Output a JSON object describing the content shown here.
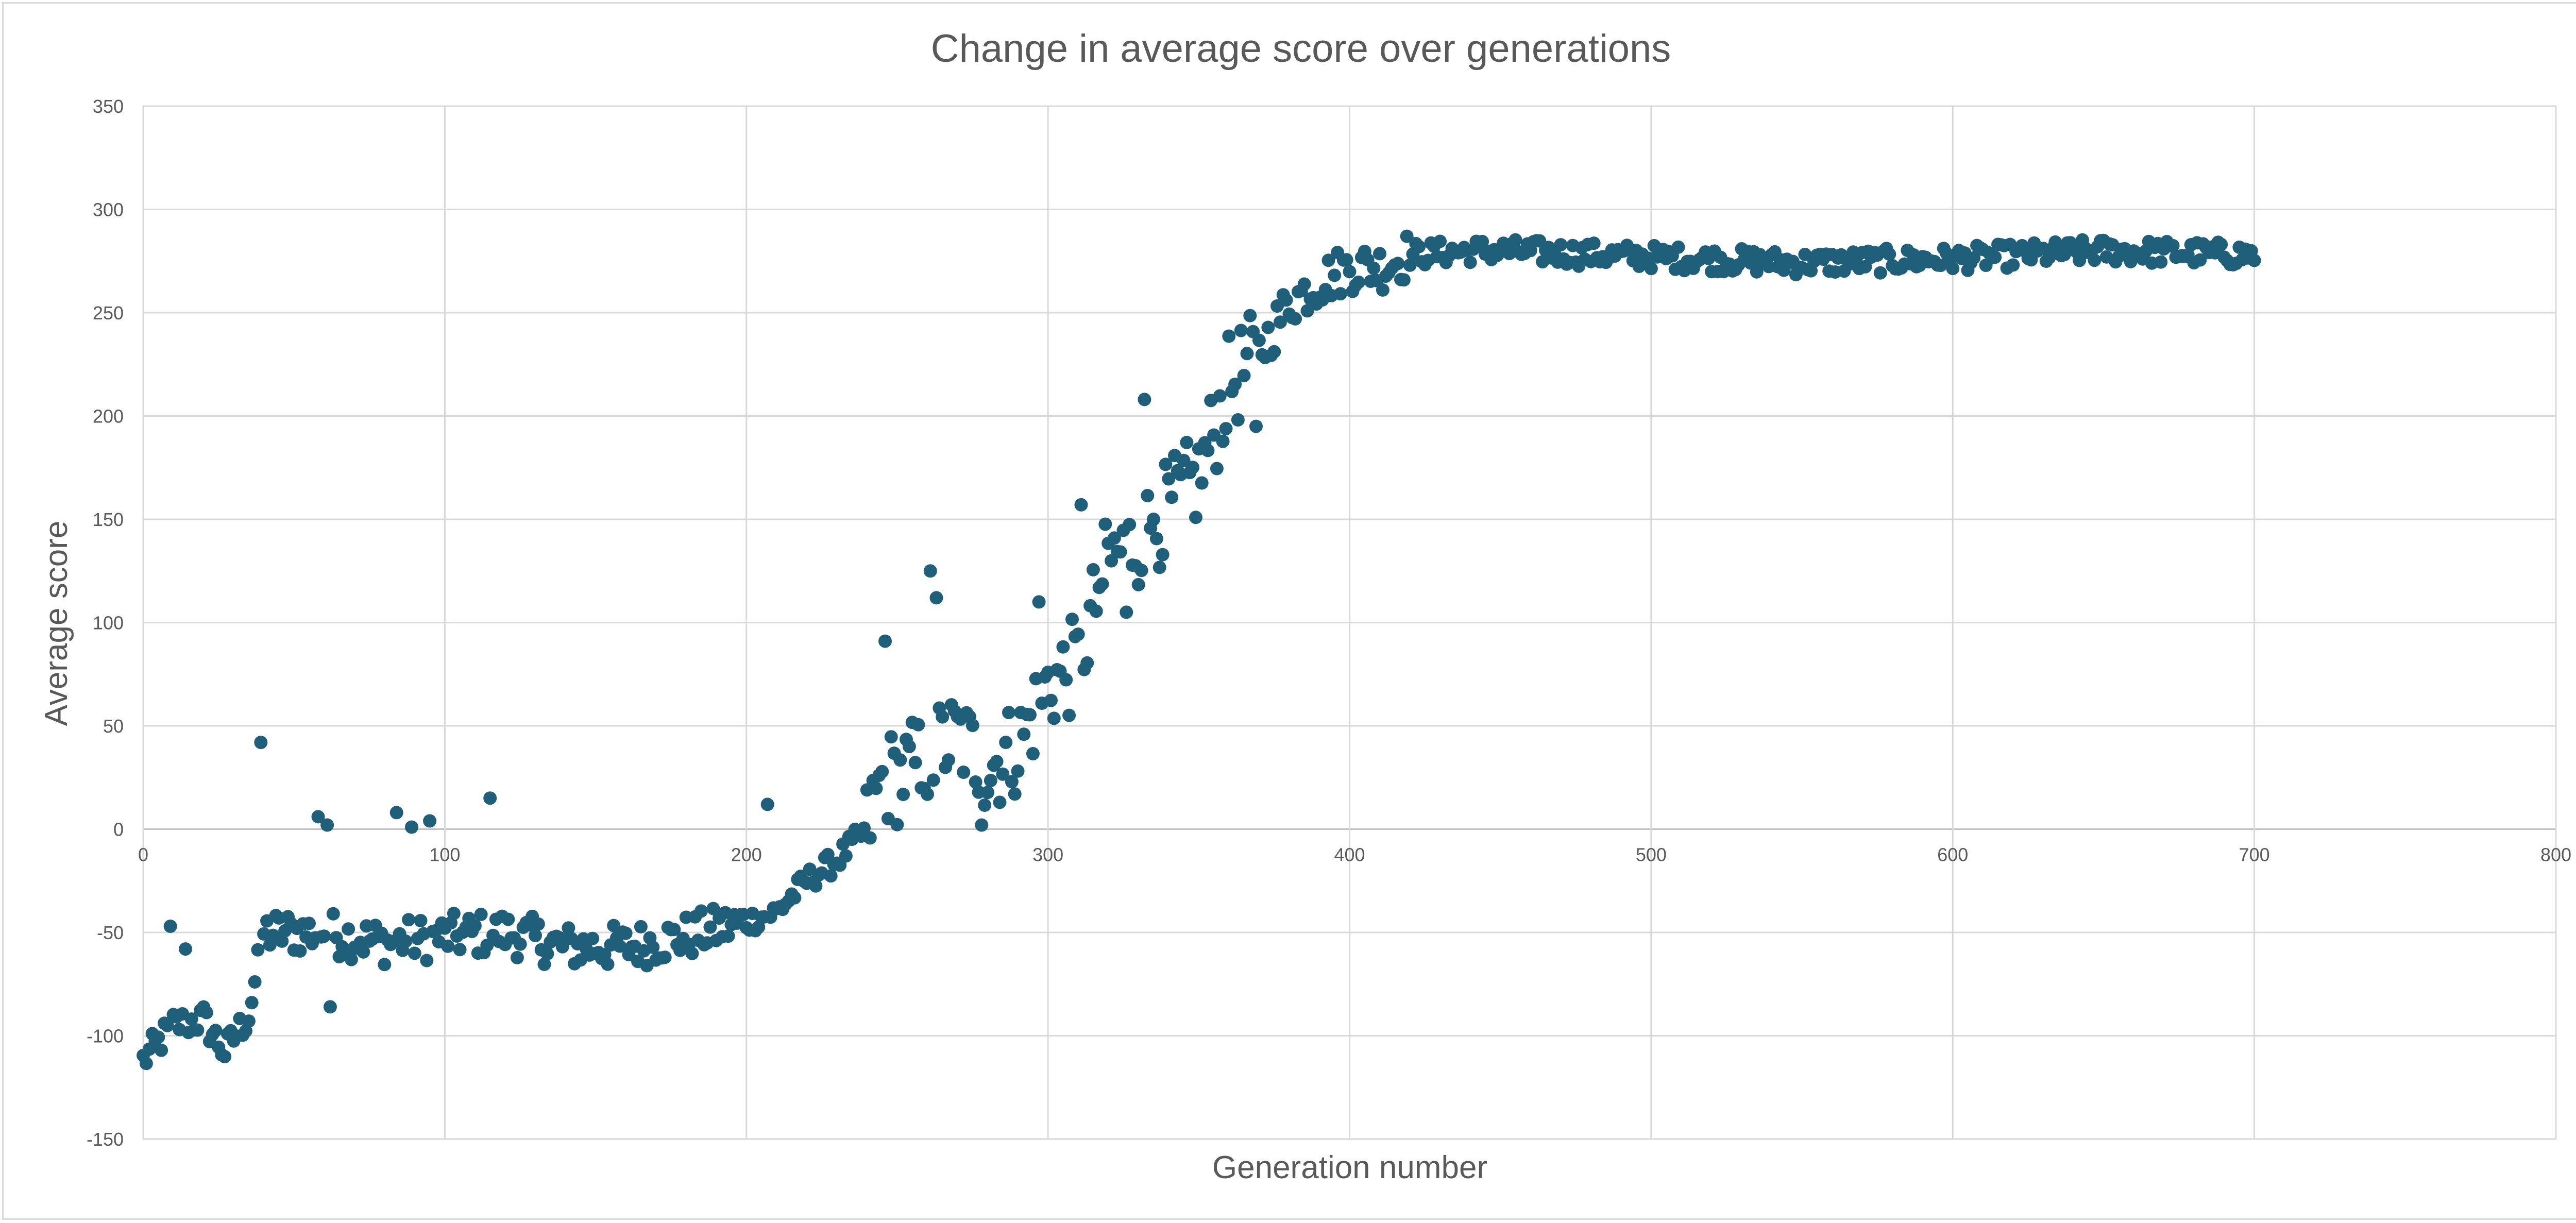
{
  "chart_data": {
    "type": "scatter",
    "title": "Change in average score over generations",
    "xlabel": "Generation number",
    "ylabel": "Average score",
    "xlim": [
      0,
      800
    ],
    "ylim": [
      -150,
      350
    ],
    "x_ticks": [
      0,
      100,
      200,
      300,
      400,
      500,
      600,
      700,
      800
    ],
    "y_ticks": [
      -150,
      -100,
      -50,
      0,
      50,
      100,
      150,
      200,
      250,
      300,
      350
    ],
    "grid": true,
    "legend": "none",
    "marker_color": "#1f5f7a",
    "generation_points": 701,
    "anchors": [
      [
        0,
        -112
      ],
      [
        10,
        -95
      ],
      [
        20,
        -92
      ],
      [
        27,
        -108
      ],
      [
        35,
        -90
      ],
      [
        40,
        -50
      ],
      [
        60,
        -50
      ],
      [
        80,
        -55
      ],
      [
        100,
        -52
      ],
      [
        120,
        -50
      ],
      [
        140,
        -57
      ],
      [
        160,
        -57
      ],
      [
        180,
        -52
      ],
      [
        200,
        -45
      ],
      [
        210,
        -40
      ],
      [
        220,
        -25
      ],
      [
        230,
        -15
      ],
      [
        240,
        0
      ],
      [
        245,
        25
      ],
      [
        250,
        25
      ],
      [
        260,
        35
      ],
      [
        270,
        45
      ],
      [
        280,
        30
      ],
      [
        290,
        40
      ],
      [
        300,
        70
      ],
      [
        310,
        80
      ],
      [
        320,
        130
      ],
      [
        330,
        140
      ],
      [
        340,
        155
      ],
      [
        350,
        170
      ],
      [
        360,
        215
      ],
      [
        370,
        230
      ],
      [
        380,
        255
      ],
      [
        390,
        265
      ],
      [
        400,
        272
      ],
      [
        410,
        272
      ],
      [
        420,
        278
      ],
      [
        440,
        280
      ],
      [
        450,
        280
      ],
      [
        500,
        277
      ],
      [
        550,
        274
      ],
      [
        600,
        276
      ],
      [
        650,
        280
      ],
      [
        700,
        278
      ]
    ],
    "outliers": [
      [
        9,
        -47
      ],
      [
        14,
        -58
      ],
      [
        39,
        42
      ],
      [
        58,
        6
      ],
      [
        61,
        2
      ],
      [
        62,
        -86
      ],
      [
        84,
        8
      ],
      [
        89,
        1
      ],
      [
        95,
        4
      ],
      [
        115,
        15
      ],
      [
        207,
        12
      ],
      [
        246,
        91
      ],
      [
        261,
        125
      ],
      [
        263,
        112
      ],
      [
        326,
        105
      ],
      [
        332,
        208
      ],
      [
        335,
        150
      ],
      [
        278,
        2
      ],
      [
        258,
        20
      ],
      [
        297,
        110
      ],
      [
        311,
        157
      ],
      [
        317,
        117
      ],
      [
        369,
        195
      ]
    ]
  }
}
